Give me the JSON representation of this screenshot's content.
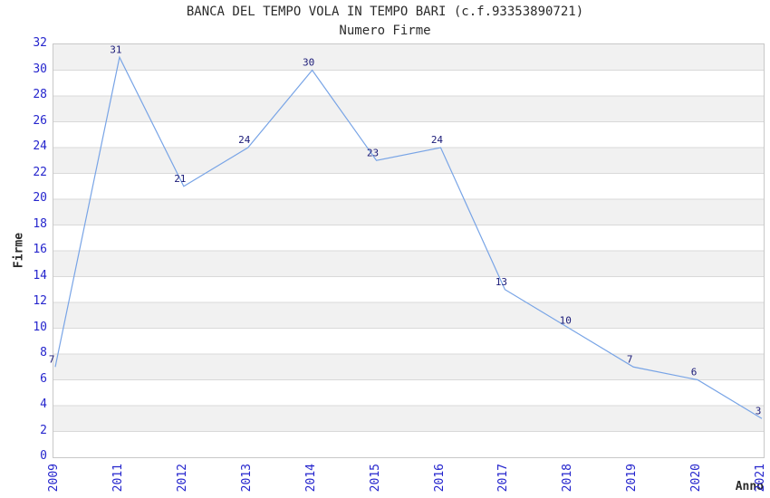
{
  "chart_data": {
    "type": "line",
    "title": "BANCA DEL TEMPO VOLA IN TEMPO BARI (c.f.93353890721)",
    "subtitle": "Numero Firme",
    "xlabel": "Anno",
    "ylabel": "Firme",
    "categories": [
      "2009",
      "2011",
      "2012",
      "2013",
      "2014",
      "2015",
      "2016",
      "2017",
      "2018",
      "2019",
      "2020",
      "2021"
    ],
    "values": [
      7,
      31,
      21,
      24,
      30,
      23,
      24,
      13,
      10,
      7,
      6,
      3
    ],
    "ylim": [
      0,
      32
    ],
    "ytick_step": 2,
    "grid": "horizontal alternating bands, gray stripes on 2-4,6-8,...,30-32",
    "legend": "none",
    "point_labels_shown": true
  },
  "colors": {
    "line": "#78a4e6",
    "value_label": "#1b1b78",
    "tick_label": "#2525cd",
    "band_fill": "#f1f1f1",
    "gridline": "#d9d9d9",
    "plot_border": "#c8c8c8",
    "text": "#2b2b2b",
    "background": "#ffffff"
  }
}
